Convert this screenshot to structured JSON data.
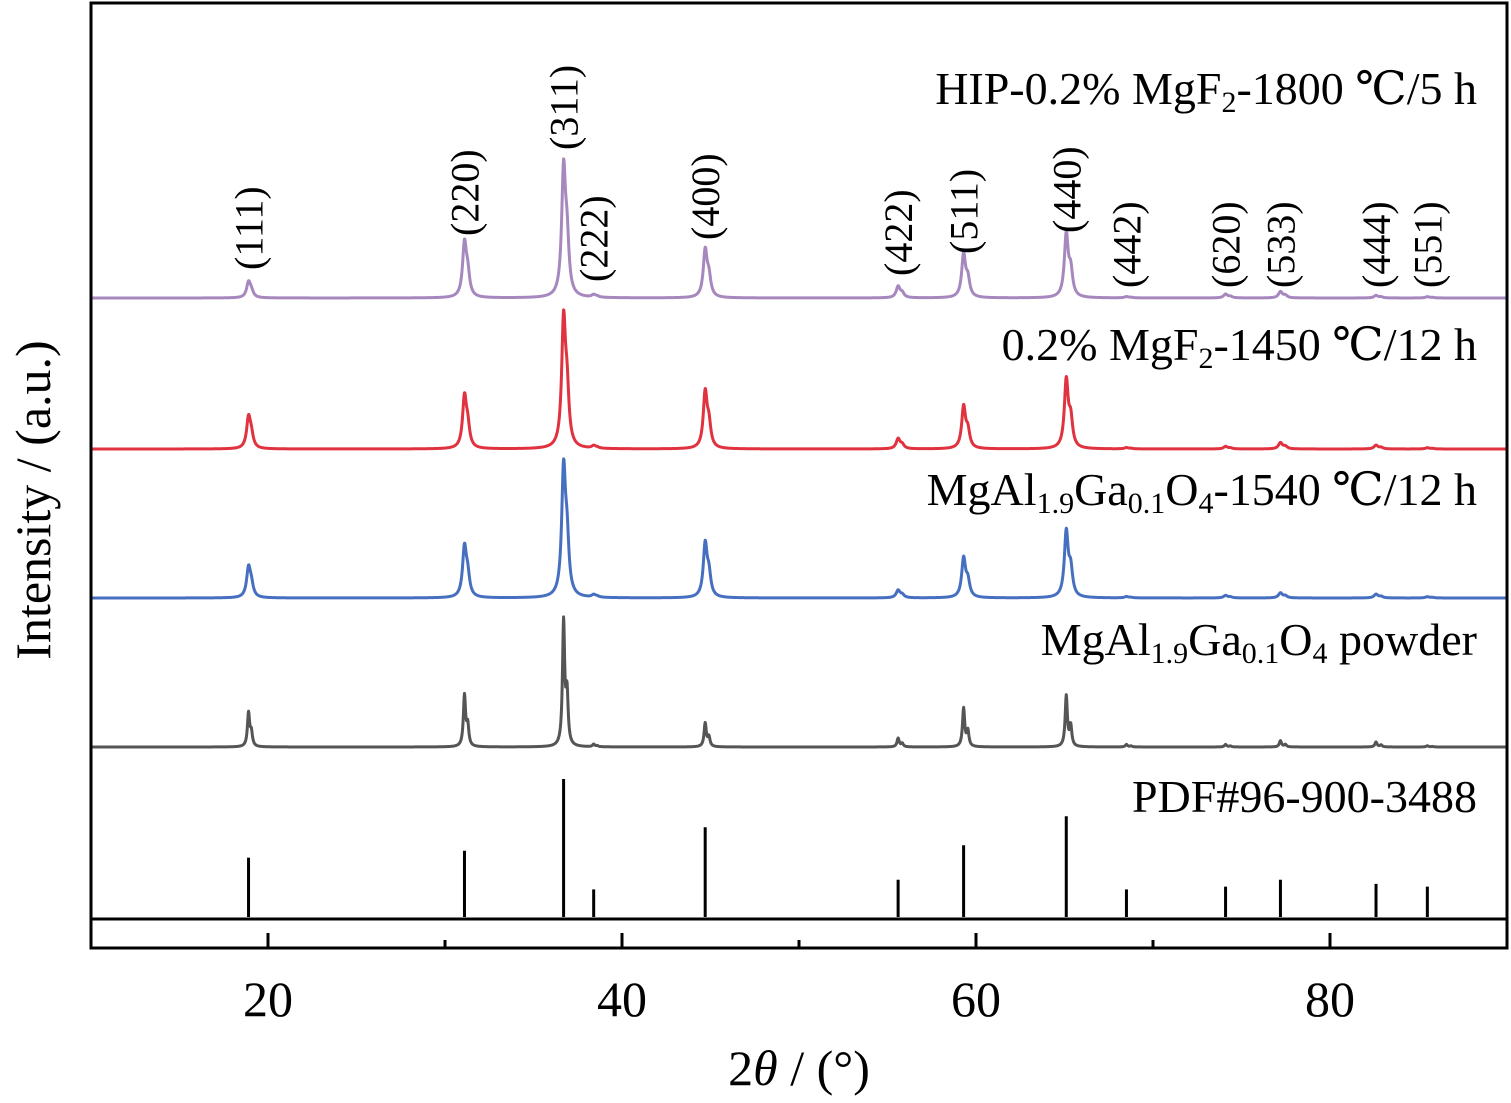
{
  "chart_data": {
    "type": "line",
    "xlabel": "2θ / (°)",
    "xlabel_parts": {
      "num": "2",
      "theta": "θ",
      "unit": " / (°)"
    },
    "ylabel": "Intensity / (a.u.)",
    "xlim": [
      10,
      90
    ],
    "x_ticks": [
      20,
      40,
      60,
      80
    ],
    "x_tick_labels": [
      "20",
      "40",
      "60",
      "80"
    ],
    "y_ticks": [],
    "grid": false,
    "legend": "none (series labels printed inline, right-aligned above each trace)",
    "series": [
      {
        "name": "HIP-0.2% MgF2-1800 ℃/5 h",
        "label_parts": [
          {
            "t": "HIP-0.2% MgF",
            "sub": false
          },
          {
            "t": "2",
            "sub": true
          },
          {
            "t": "-1800 ℃/5 h",
            "sub": false
          }
        ],
        "color": "#a688bf",
        "peaks": [
          {
            "x": 18.9,
            "y": 0.12
          },
          {
            "x": 31.1,
            "y": 0.42
          },
          {
            "x": 36.7,
            "y": 1.0
          },
          {
            "x": 38.4,
            "y": 0.02
          },
          {
            "x": 44.7,
            "y": 0.37
          },
          {
            "x": 55.6,
            "y": 0.09
          },
          {
            "x": 59.3,
            "y": 0.34
          },
          {
            "x": 65.1,
            "y": 0.5
          },
          {
            "x": 68.5,
            "y": 0.01
          },
          {
            "x": 74.1,
            "y": 0.03
          },
          {
            "x": 77.2,
            "y": 0.05
          },
          {
            "x": 82.6,
            "y": 0.02
          },
          {
            "x": 85.5,
            "y": 0.01
          }
        ]
      },
      {
        "name": "0.2% MgF2-1450 ℃/12 h",
        "label_parts": [
          {
            "t": "0.2% MgF",
            "sub": false
          },
          {
            "t": "2",
            "sub": true
          },
          {
            "t": "-1450 ℃/12 h",
            "sub": false
          }
        ],
        "color": "#e0323f",
        "peaks": [
          {
            "x": 18.9,
            "y": 0.24
          },
          {
            "x": 31.1,
            "y": 0.4
          },
          {
            "x": 36.7,
            "y": 1.0
          },
          {
            "x": 38.4,
            "y": 0.02
          },
          {
            "x": 44.7,
            "y": 0.44
          },
          {
            "x": 55.6,
            "y": 0.08
          },
          {
            "x": 59.3,
            "y": 0.33
          },
          {
            "x": 65.1,
            "y": 0.54
          },
          {
            "x": 68.5,
            "y": 0.01
          },
          {
            "x": 74.1,
            "y": 0.02
          },
          {
            "x": 77.2,
            "y": 0.05
          },
          {
            "x": 82.6,
            "y": 0.03
          },
          {
            "x": 85.5,
            "y": 0.01
          }
        ]
      },
      {
        "name": "MgAl1.9Ga0.1O4-1540 ℃/12 h",
        "label_parts": [
          {
            "t": "MgAl",
            "sub": false
          },
          {
            "t": "1.9",
            "sub": true
          },
          {
            "t": "Ga",
            "sub": false
          },
          {
            "t": "0.1",
            "sub": true
          },
          {
            "t": "O",
            "sub": false
          },
          {
            "t": "4",
            "sub": true
          },
          {
            "t": "-1540 ℃/12 h",
            "sub": false
          }
        ],
        "color": "#4670bf",
        "peaks": [
          {
            "x": 18.9,
            "y": 0.23
          },
          {
            "x": 31.1,
            "y": 0.39
          },
          {
            "x": 36.7,
            "y": 1.0
          },
          {
            "x": 38.4,
            "y": 0.02
          },
          {
            "x": 44.7,
            "y": 0.42
          },
          {
            "x": 55.6,
            "y": 0.06
          },
          {
            "x": 59.3,
            "y": 0.31
          },
          {
            "x": 65.1,
            "y": 0.52
          },
          {
            "x": 68.5,
            "y": 0.01
          },
          {
            "x": 74.1,
            "y": 0.02
          },
          {
            "x": 77.2,
            "y": 0.04
          },
          {
            "x": 82.6,
            "y": 0.03
          },
          {
            "x": 85.5,
            "y": 0.01
          }
        ]
      },
      {
        "name": "MgAl1.9Ga0.1O4 powder",
        "label_parts": [
          {
            "t": "MgAl",
            "sub": false
          },
          {
            "t": "1.9",
            "sub": true
          },
          {
            "t": "Ga",
            "sub": false
          },
          {
            "t": "0.1",
            "sub": true
          },
          {
            "t": "O",
            "sub": false
          },
          {
            "t": "4",
            "sub": true
          },
          {
            "t": " powder",
            "sub": false
          }
        ],
        "color": "#555555",
        "peaks": [
          {
            "x": 18.9,
            "y": 0.27
          },
          {
            "x": 31.1,
            "y": 0.41
          },
          {
            "x": 36.7,
            "y": 1.0
          },
          {
            "x": 38.4,
            "y": 0.02
          },
          {
            "x": 44.7,
            "y": 0.19
          },
          {
            "x": 55.6,
            "y": 0.07
          },
          {
            "x": 59.3,
            "y": 0.31
          },
          {
            "x": 65.1,
            "y": 0.41
          },
          {
            "x": 68.5,
            "y": 0.02
          },
          {
            "x": 74.1,
            "y": 0.02
          },
          {
            "x": 77.2,
            "y": 0.05
          },
          {
            "x": 82.6,
            "y": 0.04
          },
          {
            "x": 85.5,
            "y": 0.01
          }
        ]
      }
    ],
    "reference": {
      "name": "PDF#96-900-3488",
      "color": "#000000",
      "lines": [
        {
          "x": 18.9,
          "y": 0.43
        },
        {
          "x": 31.1,
          "y": 0.48
        },
        {
          "x": 36.7,
          "y": 1.0
        },
        {
          "x": 38.4,
          "y": 0.2
        },
        {
          "x": 44.7,
          "y": 0.65
        },
        {
          "x": 55.6,
          "y": 0.27
        },
        {
          "x": 59.3,
          "y": 0.52
        },
        {
          "x": 65.1,
          "y": 0.73
        },
        {
          "x": 68.5,
          "y": 0.2
        },
        {
          "x": 74.1,
          "y": 0.22
        },
        {
          "x": 77.2,
          "y": 0.27
        },
        {
          "x": 82.6,
          "y": 0.24
        },
        {
          "x": 85.5,
          "y": 0.22
        }
      ]
    },
    "hkl_labels": [
      {
        "text": "(111)",
        "x": 18.9
      },
      {
        "text": "(220)",
        "x": 31.1
      },
      {
        "text": "(311)",
        "x": 36.7
      },
      {
        "text": "(222)",
        "x": 38.4
      },
      {
        "text": "(400)",
        "x": 44.7
      },
      {
        "text": "(422)",
        "x": 55.6
      },
      {
        "text": "(511)",
        "x": 59.3
      },
      {
        "text": "(440)",
        "x": 65.1
      },
      {
        "text": "(442)",
        "x": 68.5
      },
      {
        "text": "(620)",
        "x": 74.1
      },
      {
        "text": "(533)",
        "x": 77.2
      },
      {
        "text": "(444)",
        "x": 82.6
      },
      {
        "text": "(551)",
        "x": 85.5
      }
    ]
  }
}
